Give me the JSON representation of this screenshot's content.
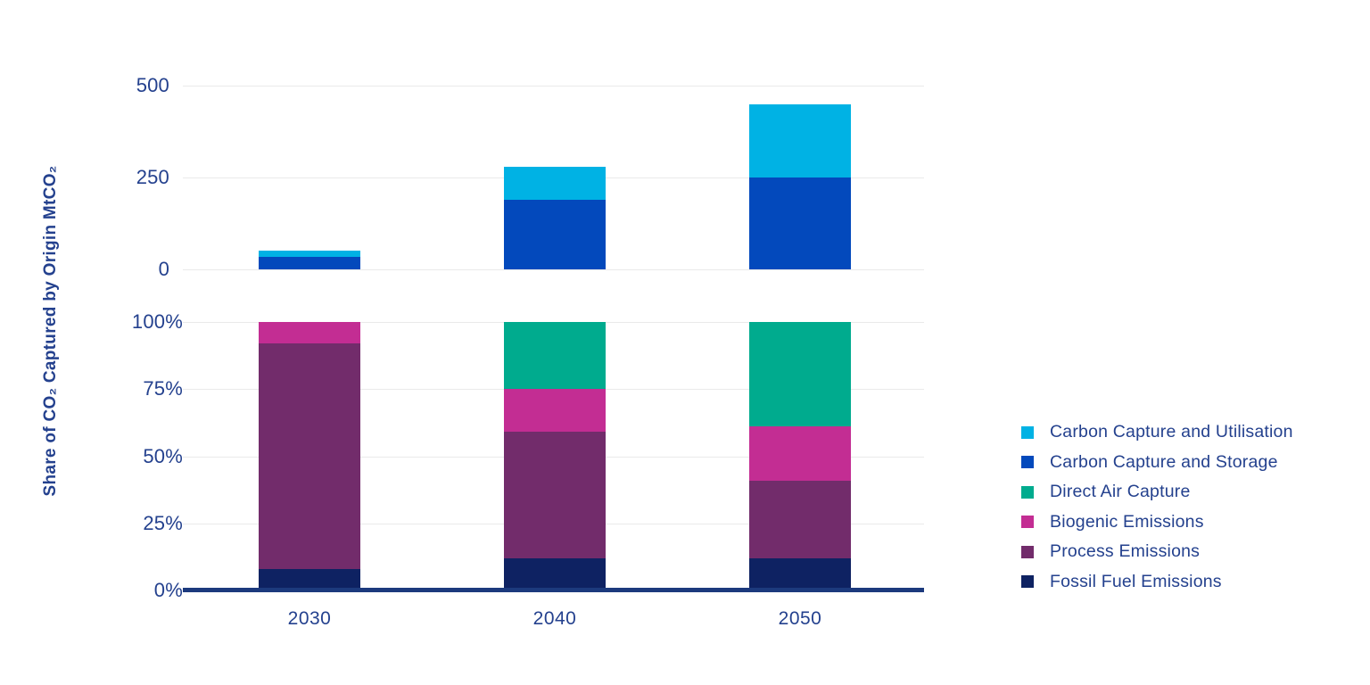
{
  "y_axis_title": "Share of CO₂ Captured by Origin MtCO₂",
  "colors": {
    "background": "#FFFFFF",
    "text": "#24418E",
    "gridline": "#EAEAEA",
    "axis_line": "#1C3A7D",
    "ccu": "#00B2E4",
    "ccs": "#0349BC",
    "dac": "#00AB8E",
    "biogenic": "#C32D93",
    "process": "#722C6B",
    "fossil": "#0E2262"
  },
  "chart_data": [
    {
      "type": "bar",
      "stacked": true,
      "categories": [
        "2030",
        "2040",
        "2050"
      ],
      "series": [
        {
          "name": "Carbon Capture and Storage",
          "color_key": "ccs",
          "values": [
            35,
            190,
            250
          ]
        },
        {
          "name": "Carbon Capture and Utilisation",
          "color_key": "ccu",
          "values": [
            15,
            90,
            200
          ]
        }
      ],
      "ylim": [
        0,
        500
      ],
      "ytick_values": [
        500,
        250,
        0
      ],
      "ytick_labels": [
        "500",
        "250",
        "0"
      ],
      "ylabel_unit": "MtCO₂",
      "grid": true,
      "legend_position": "right"
    },
    {
      "type": "bar",
      "stacked": true,
      "categories": [
        "2030",
        "2040",
        "2050"
      ],
      "series": [
        {
          "name": "Fossil Fuel Emissions",
          "color_key": "fossil",
          "values": [
            8,
            12,
            12
          ]
        },
        {
          "name": "Process Emissions",
          "color_key": "process",
          "values": [
            84,
            47,
            29
          ]
        },
        {
          "name": "Biogenic Emissions",
          "color_key": "biogenic",
          "values": [
            8,
            16,
            20
          ]
        },
        {
          "name": "Direct Air Capture",
          "color_key": "dac",
          "values": [
            0,
            25,
            39
          ]
        }
      ],
      "ylim": [
        0,
        100
      ],
      "ytick_values": [
        100,
        75,
        50,
        25,
        0
      ],
      "ytick_labels": [
        "100%",
        "75%",
        "50%",
        "25%",
        "0%"
      ],
      "ylabel_unit": "%",
      "grid": true,
      "legend_position": "right"
    }
  ],
  "x_axis": {
    "labels": [
      "2030",
      "2040",
      "2050"
    ]
  },
  "legend": {
    "items": [
      {
        "label": "Carbon Capture and Utilisation",
        "color_key": "ccu"
      },
      {
        "label": "Carbon Capture and Storage",
        "color_key": "ccs"
      },
      {
        "label": "Direct Air Capture",
        "color_key": "dac"
      },
      {
        "label": "Biogenic Emissions",
        "color_key": "biogenic"
      },
      {
        "label": "Process Emissions",
        "color_key": "process"
      },
      {
        "label": "Fossil Fuel Emissions",
        "color_key": "fossil"
      }
    ]
  }
}
